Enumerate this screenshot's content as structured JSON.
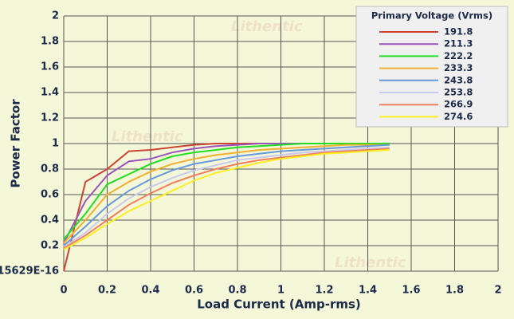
{
  "chart_data": {
    "type": "line",
    "watermark": "Lithentic",
    "x_label": "Load Current (Amp-rms)",
    "y_label": "Power Factor",
    "legend_title": "Primary Voltage (Vrms)",
    "legend_position": "top-right",
    "grid": true,
    "xlim": [
      0,
      2
    ],
    "ylim": [
      0,
      2
    ],
    "xticks": [
      0,
      0.2,
      0.4,
      0.6,
      0.8,
      1,
      1.2,
      1.4,
      1.6,
      1.8,
      2
    ],
    "yticks": [
      {
        "value": 0,
        "label": "15629E-16"
      },
      0.2,
      0.4,
      0.6,
      0.8,
      1,
      1.2,
      1.4,
      1.6,
      1.8,
      2
    ],
    "x": [
      0,
      0.1,
      0.2,
      0.3,
      0.4,
      0.5,
      0.6,
      0.7,
      0.8,
      0.9,
      1,
      1.1,
      1.2,
      1.3,
      1.4,
      1.5
    ],
    "series": [
      {
        "name": "191.8",
        "color": "#cc4433",
        "values": [
          0,
          0.7,
          0.8,
          0.94,
          0.95,
          0.97,
          0.99,
          1,
          1,
          1,
          1,
          1,
          1,
          1,
          1,
          1
        ]
      },
      {
        "name": "211.3",
        "color": "#9955bb",
        "values": [
          0.22,
          0.55,
          0.75,
          0.86,
          0.88,
          0.93,
          0.96,
          0.98,
          0.99,
          1,
          1,
          1,
          1,
          1,
          1,
          1
        ]
      },
      {
        "name": "222.2",
        "color": "#22dd22",
        "values": [
          0.25,
          0.45,
          0.68,
          0.76,
          0.84,
          0.9,
          0.93,
          0.95,
          0.97,
          0.98,
          0.99,
          1,
          1,
          1,
          1,
          1
        ]
      },
      {
        "name": "233.3",
        "color": "#f0b030",
        "values": [
          0.22,
          0.4,
          0.6,
          0.7,
          0.78,
          0.84,
          0.88,
          0.91,
          0.93,
          0.95,
          0.96,
          0.97,
          0.98,
          0.99,
          0.99,
          0.99
        ]
      },
      {
        "name": "243.8",
        "color": "#6699dd",
        "values": [
          0.2,
          0.35,
          0.51,
          0.63,
          0.72,
          0.79,
          0.84,
          0.87,
          0.9,
          0.92,
          0.94,
          0.95,
          0.96,
          0.97,
          0.98,
          0.99
        ]
      },
      {
        "name": "253.8",
        "color": "#c8c8f0",
        "values": [
          0.19,
          0.3,
          0.45,
          0.57,
          0.66,
          0.73,
          0.79,
          0.83,
          0.87,
          0.89,
          0.91,
          0.93,
          0.94,
          0.95,
          0.96,
          0.97
        ]
      },
      {
        "name": "266.9",
        "color": "#f08060",
        "values": [
          0.18,
          0.28,
          0.4,
          0.52,
          0.61,
          0.69,
          0.75,
          0.8,
          0.84,
          0.87,
          0.89,
          0.91,
          0.93,
          0.94,
          0.95,
          0.96
        ]
      },
      {
        "name": "274.6",
        "color": "#ffee22",
        "values": [
          0.17,
          0.26,
          0.37,
          0.47,
          0.55,
          0.63,
          0.71,
          0.77,
          0.81,
          0.85,
          0.88,
          0.9,
          0.92,
          0.93,
          0.94,
          0.95
        ]
      }
    ]
  }
}
